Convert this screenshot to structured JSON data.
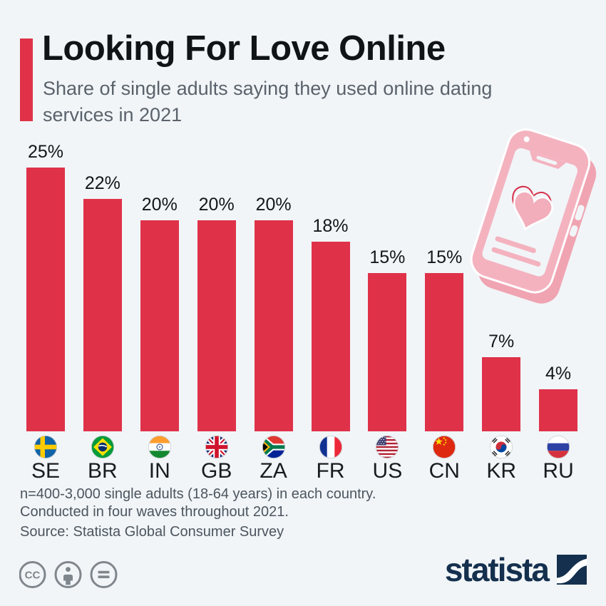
{
  "page": {
    "background_color": "#f1f5f8"
  },
  "chart_data": {
    "type": "bar",
    "title": "Looking For Love Online",
    "subtitle": "Share of single adults saying they used online dating services in 2021",
    "categories": [
      "SE",
      "BR",
      "IN",
      "GB",
      "ZA",
      "FR",
      "US",
      "CN",
      "KR",
      "RU"
    ],
    "values": [
      25,
      22,
      20,
      20,
      20,
      18,
      15,
      15,
      7,
      4
    ],
    "value_labels": [
      "25%",
      "22%",
      "20%",
      "20%",
      "20%",
      "18%",
      "15%",
      "15%",
      "7%",
      "4%"
    ],
    "flag_icons": [
      "flag-se",
      "flag-br",
      "flag-in",
      "flag-gb",
      "flag-za",
      "flag-fr",
      "flag-us",
      "flag-cn",
      "flag-kr",
      "flag-ru"
    ],
    "bar_color": "#df3249",
    "accent_color": "#df3249",
    "ylim": [
      0,
      26
    ],
    "grid": false,
    "legend": false,
    "value_axis_visible": false
  },
  "footnotes": [
    "n=400-3,000 single adults (18-64 years) in each country.",
    "Conducted in four waves throughout 2021."
  ],
  "source": "Source: Statista Global Consumer Survey",
  "license": {
    "icons": [
      "creative-commons-icon",
      "attribution-icon",
      "no-derivatives-icon"
    ],
    "cc_label": "CC",
    "color": "#7f868c"
  },
  "branding": {
    "wordmark": "statista",
    "color": "#15304e"
  },
  "illustration": {
    "name": "dating-app-phone-with-heart",
    "color": "#f4b2bf"
  }
}
